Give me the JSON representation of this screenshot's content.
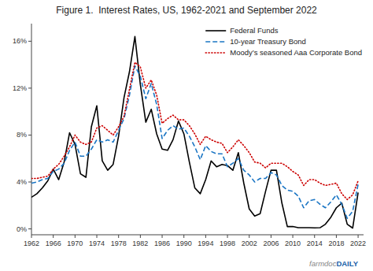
{
  "chart_data": {
    "type": "line",
    "title": "Figure 1.  Interest Rates, US, 1962-2021 and September 2022",
    "x": [
      1962,
      1963,
      1964,
      1965,
      1966,
      1967,
      1968,
      1969,
      1970,
      1971,
      1972,
      1973,
      1974,
      1975,
      1976,
      1977,
      1978,
      1979,
      1980,
      1981,
      1982,
      1983,
      1984,
      1985,
      1986,
      1987,
      1988,
      1989,
      1990,
      1991,
      1992,
      1993,
      1994,
      1995,
      1996,
      1997,
      1998,
      1999,
      2000,
      2001,
      2002,
      2003,
      2004,
      2005,
      2006,
      2007,
      2008,
      2009,
      2010,
      2011,
      2012,
      2013,
      2014,
      2015,
      2016,
      2017,
      2018,
      2019,
      2020,
      2021,
      2022
    ],
    "series": [
      {
        "name": "Federal Funds",
        "color": "#000000",
        "line_style": "solid",
        "values": [
          2.7,
          3.0,
          3.5,
          4.1,
          5.1,
          4.2,
          5.7,
          8.2,
          7.2,
          4.7,
          4.4,
          8.7,
          10.5,
          5.8,
          5.0,
          5.5,
          7.9,
          11.2,
          13.4,
          16.4,
          12.3,
          9.1,
          10.2,
          8.1,
          6.8,
          6.7,
          7.6,
          9.2,
          8.1,
          5.7,
          3.5,
          3.0,
          4.2,
          5.8,
          5.3,
          5.5,
          5.4,
          5.0,
          6.5,
          3.9,
          1.7,
          1.1,
          1.3,
          3.2,
          5.0,
          5.0,
          2.2,
          0.2,
          0.2,
          0.1,
          0.1,
          0.1,
          0.09,
          0.1,
          0.4,
          1.0,
          1.8,
          2.2,
          0.4,
          0.07,
          3.1
        ]
      },
      {
        "name": "10-year Treasury Bond",
        "color": "#1a75c4",
        "line_style": "dashed",
        "values": [
          3.9,
          4.0,
          4.2,
          4.3,
          4.9,
          5.1,
          5.6,
          6.7,
          7.4,
          6.2,
          6.2,
          6.8,
          7.6,
          7.4,
          7.6,
          7.4,
          8.4,
          9.4,
          11.4,
          13.9,
          13.0,
          11.1,
          12.4,
          10.6,
          7.7,
          8.4,
          8.8,
          8.5,
          8.6,
          7.9,
          7.0,
          5.9,
          7.1,
          6.6,
          6.4,
          6.4,
          5.3,
          5.6,
          6.0,
          5.0,
          4.6,
          4.0,
          4.3,
          4.3,
          4.8,
          4.6,
          3.7,
          3.3,
          3.2,
          2.8,
          1.8,
          2.4,
          2.5,
          2.1,
          1.8,
          2.3,
          2.9,
          2.1,
          0.9,
          1.5,
          3.8
        ]
      },
      {
        "name": "Moody’s seasoned Aaa Corporate Bond",
        "color": "#cc0000",
        "line_style": "dotted",
        "values": [
          4.3,
          4.3,
          4.4,
          4.5,
          5.1,
          5.5,
          6.2,
          7.0,
          8.0,
          7.4,
          7.2,
          7.4,
          8.6,
          8.8,
          8.4,
          8.0,
          8.7,
          9.6,
          11.9,
          14.2,
          13.8,
          12.0,
          12.7,
          11.4,
          9.0,
          9.4,
          9.7,
          9.3,
          9.3,
          8.8,
          8.1,
          7.2,
          7.9,
          7.6,
          7.4,
          7.3,
          6.5,
          7.0,
          7.6,
          7.1,
          6.5,
          5.7,
          5.6,
          5.2,
          5.6,
          5.6,
          5.6,
          5.3,
          4.9,
          4.6,
          3.7,
          4.2,
          4.2,
          3.9,
          3.7,
          3.8,
          3.9,
          3.0,
          2.5,
          2.9,
          4.1
        ]
      }
    ],
    "xlim": [
      1962,
      2023
    ],
    "xticks": [
      1962,
      1966,
      1970,
      1974,
      1978,
      1982,
      1986,
      1990,
      1994,
      1998,
      2002,
      2006,
      2010,
      2014,
      2018,
      2022
    ],
    "ylim": [
      -0.5,
      17.5
    ],
    "yticks": [
      {
        "value": 0,
        "label": "0%"
      },
      {
        "value": 4,
        "label": "4%"
      },
      {
        "value": 8,
        "label": "8%"
      },
      {
        "value": 12,
        "label": "12%"
      },
      {
        "value": 16,
        "label": "16%"
      }
    ],
    "grid": false,
    "legend": "upper right",
    "annotations": [
      {
        "text": "farmdoc",
        "color": "#888888"
      },
      {
        "text": "DAILY",
        "color": "#1a5fa8"
      }
    ]
  }
}
